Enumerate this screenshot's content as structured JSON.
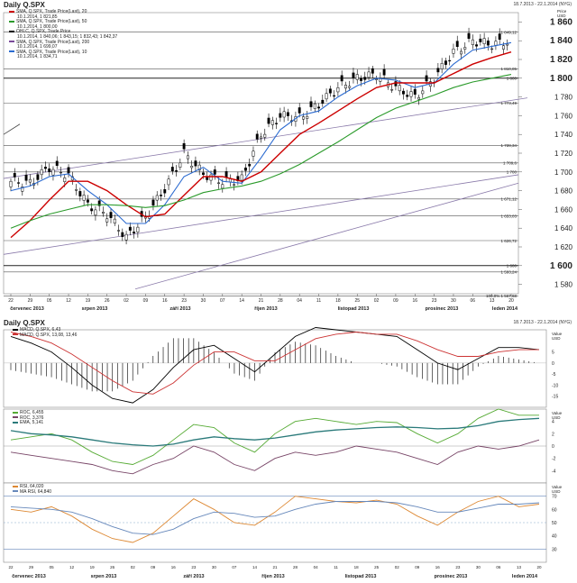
{
  "top": {
    "title": "Daily Q.SPX",
    "date_range": "18.7.2013 - 22.1.2014 (NYG)",
    "axis_unit_top": "Price",
    "axis_unit_bottom": "USD",
    "legend": [
      {
        "label": "SMA, Q.SPX, Trade Price(Last), 20",
        "sub": "10.1.2014, 1 821,85",
        "color": "#cc0000"
      },
      {
        "label": "SMA, Q.SPX, Trade Price(Last), 50",
        "sub": "10.1.2014, 1 800,00",
        "color": "#2a9a2a"
      },
      {
        "label": "OHLC, Q.SPX, Trade Price",
        "sub": "10.1.2014, 1 840,06; 1 843,15; 1 832,43; 1 842,37",
        "color": "#000000"
      },
      {
        "label": "SMA, Q.SPX, Trade Price(Last), 200",
        "sub": "10.1.2014, 1 699,07",
        "color": "#7a4a9a"
      },
      {
        "label": "SMA, Q.SPX, Trade Price(Last), 10",
        "sub": "10.1.2014, 1 834,71",
        "color": "#2a6ad0"
      }
    ],
    "hlines": [
      {
        "value": 1849.12,
        "label": "1 849,12"
      },
      {
        "value": 1810.05,
        "label": "1 810,05"
      },
      {
        "value": 1800,
        "label": "1 800"
      },
      {
        "value": 1773.49,
        "label": "1 773,49"
      },
      {
        "value": 1728.34,
        "label": "1 728,34"
      },
      {
        "value": 1709.6,
        "label": "1 709,6"
      },
      {
        "value": 1700,
        "label": "1 700"
      },
      {
        "value": 1671.12,
        "label": "1 671,12"
      },
      {
        "value": 1653.03,
        "label": "1 653,03"
      },
      {
        "value": 1626.72,
        "label": "1 626,72"
      },
      {
        "value": 1600,
        "label": "1 600"
      },
      {
        "value": 1593.24,
        "label": "1 593,24"
      },
      {
        "value": 1567.68,
        "label": "100,0% 1 567,68"
      }
    ],
    "yticks": [
      {
        "v": 1860,
        "t": "1 860",
        "bold": true
      },
      {
        "v": 1840,
        "t": "1 840",
        "bold": true
      },
      {
        "v": 1820,
        "t": "1 820",
        "bold": true
      },
      {
        "v": 1800,
        "t": "1 800",
        "bold": true
      },
      {
        "v": 1780,
        "t": "1 780",
        "bold": false
      },
      {
        "v": 1760,
        "t": "1 760",
        "bold": false
      },
      {
        "v": 1740,
        "t": "1 740",
        "bold": false
      },
      {
        "v": 1720,
        "t": "1 720",
        "bold": false
      },
      {
        "v": 1700,
        "t": "1 700",
        "bold": false
      },
      {
        "v": 1680,
        "t": "1 680",
        "bold": false
      },
      {
        "v": 1660,
        "t": "1 660",
        "bold": false
      },
      {
        "v": 1640,
        "t": "1 640",
        "bold": false
      },
      {
        "v": 1620,
        "t": "1 620",
        "bold": false
      },
      {
        "v": 1600,
        "t": "1 600",
        "bold": true
      },
      {
        "v": 1580,
        "t": "1 580",
        "bold": false
      }
    ],
    "xticks": [
      "22",
      "29",
      "05",
      "12",
      "19",
      "26",
      "02",
      "09",
      "16",
      "23",
      "30",
      "07",
      "14",
      "21",
      "28",
      "04",
      "11",
      "18",
      "25",
      "02",
      "09",
      "16",
      "23",
      "30",
      "06",
      "13",
      "20"
    ],
    "months": [
      "červenec 2013",
      "srpen 2013",
      "září 2013",
      "říjen 2013",
      "listopad 2013",
      "prosinec 2013",
      "leden 2014"
    ]
  },
  "lower": {
    "title": "Daily Q.SPX",
    "date_range": "18.7.2013 - 22.1.2014 (NYG)",
    "macd": {
      "legend": [
        {
          "label": "MACD, Q.SPX, 6,43",
          "color": "#000000"
        },
        {
          "label": "MACD, Q.SPX, 13,08, 13,46",
          "color": "#cc3333"
        }
      ],
      "unit": [
        "Value",
        "USD"
      ],
      "yticks": [
        "15",
        "10",
        "5",
        "0",
        "-5",
        "-10",
        "-15",
        "-20"
      ]
    },
    "roc": {
      "legend": [
        {
          "label": "ROC, 6,455",
          "color": "#55aa33"
        },
        {
          "label": "ROC, 3,376",
          "color": "#774466"
        },
        {
          "label": "EMA, 5,141",
          "color": "#2a7a7a"
        }
      ],
      "unit": [
        "Value",
        "USD"
      ],
      "yticks": [
        "6",
        "4",
        "2",
        "0",
        "-2",
        "-4",
        "-6"
      ]
    },
    "rsi": {
      "legend": [
        {
          "label": "RSI, 64,020",
          "color": "#dd8833"
        },
        {
          "label": "MA RSI, 64,840",
          "color": "#6688bb"
        }
      ],
      "unit": [
        "Value",
        "USD"
      ],
      "yticks": [
        "80",
        "70",
        "60",
        "50",
        "40",
        "30",
        "20"
      ]
    },
    "months": [
      "červenec 2013",
      "srpen 2013",
      "září 2013",
      "říjen 2013",
      "listopad 2013",
      "prosinec 2013",
      "leden 2014"
    ]
  },
  "chart_data": [
    {
      "type": "candlestick",
      "title": "Daily Q.SPX",
      "ylabel": "Price USD",
      "ylim": [
        1570,
        1870
      ],
      "x": [
        "2013-07-18",
        "2013-07-25",
        "2013-08-01",
        "2013-08-08",
        "2013-08-15",
        "2013-08-22",
        "2013-08-29",
        "2013-09-05",
        "2013-09-12",
        "2013-09-19",
        "2013-09-26",
        "2013-10-03",
        "2013-10-10",
        "2013-10-17",
        "2013-10-24",
        "2013-10-31",
        "2013-11-07",
        "2013-11-14",
        "2013-11-21",
        "2013-11-28",
        "2013-12-05",
        "2013-12-12",
        "2013-12-19",
        "2013-12-26",
        "2014-01-02",
        "2014-01-09",
        "2014-01-16"
      ],
      "series": [
        {
          "name": "OHLC, Q.SPX, Trade Price",
          "values": [
            1690,
            1688,
            1705,
            1697,
            1665,
            1655,
            1630,
            1652,
            1682,
            1720,
            1698,
            1690,
            1692,
            1740,
            1760,
            1758,
            1772,
            1790,
            1800,
            1804,
            1790,
            1780,
            1800,
            1828,
            1840,
            1836,
            1840
          ]
        },
        {
          "name": "SMA, Q.SPX, Trade Price(Last), 10",
          "values": [
            1680,
            1685,
            1695,
            1698,
            1680,
            1665,
            1645,
            1645,
            1665,
            1695,
            1705,
            1690,
            1688,
            1715,
            1745,
            1760,
            1765,
            1780,
            1792,
            1800,
            1798,
            1790,
            1795,
            1815,
            1830,
            1834,
            1838
          ]
        },
        {
          "name": "SMA, Q.SPX, Trade Price(Last), 20",
          "values": [
            1630,
            1648,
            1670,
            1690,
            1690,
            1680,
            1665,
            1652,
            1655,
            1675,
            1695,
            1695,
            1690,
            1700,
            1720,
            1740,
            1752,
            1765,
            1778,
            1790,
            1795,
            1795,
            1795,
            1805,
            1815,
            1822,
            1828
          ]
        },
        {
          "name": "SMA, Q.SPX, Trade Price(Last), 50",
          "values": [
            1640,
            1648,
            1655,
            1660,
            1665,
            1665,
            1664,
            1662,
            1664,
            1670,
            1678,
            1682,
            1685,
            1690,
            1698,
            1708,
            1720,
            1732,
            1745,
            1758,
            1768,
            1775,
            1782,
            1790,
            1796,
            1800,
            1804
          ]
        }
      ]
    },
    {
      "type": "line",
      "title": "MACD",
      "ylim": [
        -20,
        15
      ],
      "series": [
        {
          "name": "MACD, Q.SPX, 6,43",
          "values": [
            12,
            9,
            5,
            -2,
            -10,
            -16,
            -18,
            -12,
            -2,
            6,
            8,
            2,
            -4,
            4,
            12,
            16,
            15,
            14,
            13,
            12,
            6,
            0,
            -3,
            2,
            7,
            7,
            6
          ]
        },
        {
          "name": "MACD, Q.SPX, 13,08, 13,46",
          "values": [
            14,
            12,
            9,
            4,
            -2,
            -8,
            -13,
            -14,
            -9,
            -1,
            5,
            5,
            1,
            1,
            6,
            11,
            13,
            14,
            13,
            13,
            10,
            6,
            3,
            3,
            5,
            6,
            6
          ]
        }
      ]
    },
    {
      "type": "line",
      "title": "ROC",
      "ylim": [
        -6,
        6
      ],
      "series": [
        {
          "name": "ROC, 6,455",
          "values": [
            1,
            1.5,
            2,
            1,
            -1,
            -2.5,
            -3,
            -1.5,
            1,
            3.5,
            3,
            0.5,
            -1,
            2,
            4,
            4.5,
            4,
            3.5,
            4,
            3.8,
            2,
            0.5,
            2,
            4.5,
            6,
            5,
            5
          ]
        },
        {
          "name": "ROC, 3,376",
          "values": [
            -1,
            -1.5,
            -2,
            -2.5,
            -3,
            -4,
            -4.5,
            -3,
            -2,
            0,
            -1,
            -3,
            -4,
            -2,
            -1,
            -1.5,
            -1,
            0,
            -0.5,
            -1,
            -2,
            -3,
            -1,
            0,
            -0.5,
            0,
            1
          ]
        },
        {
          "name": "EMA, 5,141",
          "values": [
            2.5,
            2,
            1.8,
            1.5,
            1,
            0.5,
            0.2,
            0,
            0.3,
            1,
            1.5,
            1.2,
            1,
            1.3,
            1.8,
            2.3,
            2.6,
            2.8,
            3,
            3.1,
            3,
            2.8,
            2.9,
            3.3,
            4,
            4.3,
            4.5
          ]
        }
      ]
    },
    {
      "type": "line",
      "title": "RSI",
      "ylim": [
        20,
        80
      ],
      "series": [
        {
          "name": "RSI, 64,020",
          "values": [
            60,
            58,
            62,
            55,
            45,
            38,
            35,
            42,
            55,
            68,
            60,
            50,
            48,
            58,
            70,
            68,
            66,
            65,
            67,
            64,
            55,
            48,
            58,
            66,
            70,
            62,
            64
          ]
        },
        {
          "name": "MA RSI, 64,840",
          "values": [
            62,
            61,
            60,
            58,
            53,
            47,
            42,
            41,
            45,
            53,
            58,
            57,
            54,
            55,
            60,
            64,
            66,
            66,
            66,
            65,
            62,
            58,
            58,
            61,
            64,
            64,
            65
          ]
        }
      ]
    }
  ]
}
